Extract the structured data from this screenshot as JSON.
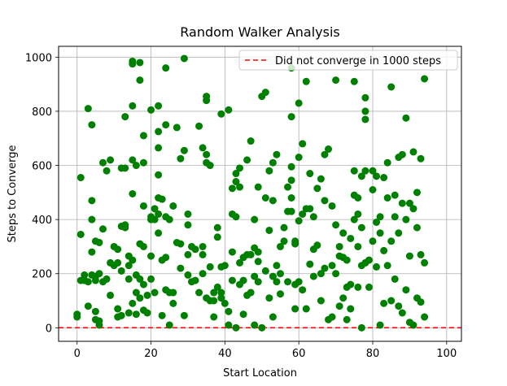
{
  "chart_data": {
    "type": "scatter",
    "title": "Random Walker Analysis",
    "xlabel": "Start Location",
    "ylabel": "Steps to Converge",
    "xlim": [
      -5,
      104
    ],
    "ylim": [
      -50,
      1040
    ],
    "xticks": [
      0,
      20,
      40,
      60,
      80,
      100
    ],
    "yticks": [
      0,
      200,
      400,
      600,
      800,
      1000
    ],
    "grid": true,
    "legend": {
      "position": "top-right",
      "entries": [
        "Did not converge in 1000 steps"
      ]
    },
    "reference_line": {
      "y": 0,
      "style": "dashed",
      "color": "#ff0000",
      "label": "Did not converge in 1000 steps"
    },
    "marker_color": "#008000",
    "series": [
      {
        "points": [
          [
            0,
            50
          ],
          [
            0,
            40
          ],
          [
            1,
            345
          ],
          [
            1,
            555
          ],
          [
            1,
            175
          ],
          [
            2,
            195
          ],
          [
            2,
            175
          ],
          [
            3,
            810
          ],
          [
            3,
            170
          ],
          [
            3,
            80
          ],
          [
            4,
            750
          ],
          [
            4,
            470
          ],
          [
            4,
            400
          ],
          [
            4,
            280
          ],
          [
            4,
            195
          ],
          [
            5,
            320
          ],
          [
            5,
            190
          ],
          [
            5,
            175
          ],
          [
            5,
            60
          ],
          [
            5,
            30
          ],
          [
            6,
            315
          ],
          [
            6,
            200
          ],
          [
            6,
            10
          ],
          [
            6,
            25
          ],
          [
            7,
            610
          ],
          [
            7,
            365
          ],
          [
            7,
            170
          ],
          [
            8,
            580
          ],
          [
            8,
            180
          ],
          [
            9,
            620
          ],
          [
            9,
            240
          ],
          [
            9,
            120
          ],
          [
            10,
            230
          ],
          [
            10,
            300
          ],
          [
            11,
            290
          ],
          [
            11,
            240
          ],
          [
            11,
            70
          ],
          [
            11,
            40
          ],
          [
            12,
            590
          ],
          [
            12,
            375
          ],
          [
            12,
            210
          ],
          [
            12,
            45
          ],
          [
            13,
            590
          ],
          [
            13,
            780
          ],
          [
            13,
            380
          ],
          [
            13,
            370
          ],
          [
            14,
            265
          ],
          [
            14,
            230
          ],
          [
            14,
            180
          ],
          [
            14,
            55
          ],
          [
            15,
            985
          ],
          [
            15,
            975
          ],
          [
            15,
            820
          ],
          [
            15,
            620
          ],
          [
            15,
            495
          ],
          [
            15,
            250
          ],
          [
            15,
            90
          ],
          [
            16,
            600
          ],
          [
            16,
            195
          ],
          [
            16,
            130
          ],
          [
            16,
            50
          ],
          [
            17,
            980
          ],
          [
            17,
            915
          ],
          [
            17,
            310
          ],
          [
            17,
            180
          ],
          [
            17,
            110
          ],
          [
            18,
            710
          ],
          [
            18,
            610
          ],
          [
            18,
            450
          ],
          [
            18,
            300
          ],
          [
            18,
            160
          ],
          [
            18,
            65
          ],
          [
            19,
            120
          ],
          [
            19,
            55
          ],
          [
            20,
            805
          ],
          [
            20,
            410
          ],
          [
            20,
            400
          ],
          [
            20,
            265
          ],
          [
            20,
            180
          ],
          [
            21,
            440
          ],
          [
            21,
            400
          ],
          [
            21,
            130
          ],
          [
            22,
            820
          ],
          [
            22,
            725
          ],
          [
            22,
            665
          ],
          [
            22,
            565
          ],
          [
            22,
            480
          ],
          [
            22,
            420
          ],
          [
            22,
            350
          ],
          [
            23,
            475
          ],
          [
            23,
            250
          ],
          [
            23,
            45
          ],
          [
            24,
            750
          ],
          [
            24,
            960
          ],
          [
            24,
            410
          ],
          [
            24,
            260
          ],
          [
            24,
            140
          ],
          [
            25,
            400
          ],
          [
            25,
            130
          ],
          [
            25,
            10
          ],
          [
            26,
            450
          ],
          [
            26,
            130
          ],
          [
            26,
            90
          ],
          [
            27,
            740
          ],
          [
            27,
            315
          ],
          [
            28,
            625
          ],
          [
            28,
            310
          ],
          [
            28,
            220
          ],
          [
            29,
            995
          ],
          [
            29,
            655
          ],
          [
            29,
            45
          ],
          [
            30,
            420
          ],
          [
            30,
            380
          ],
          [
            30,
            270
          ],
          [
            30,
            195
          ],
          [
            31,
            300
          ],
          [
            31,
            170
          ],
          [
            32,
            290
          ],
          [
            32,
            175
          ],
          [
            33,
            745
          ],
          [
            33,
            130
          ],
          [
            34,
            665
          ],
          [
            34,
            300
          ],
          [
            34,
            270
          ],
          [
            34,
            200
          ],
          [
            35,
            855
          ],
          [
            35,
            840
          ],
          [
            35,
            640
          ],
          [
            35,
            610
          ],
          [
            35,
            110
          ],
          [
            36,
            600
          ],
          [
            36,
            225
          ],
          [
            36,
            100
          ],
          [
            37,
            130
          ],
          [
            37,
            100
          ],
          [
            37,
            40
          ],
          [
            38,
            370
          ],
          [
            38,
            335
          ],
          [
            38,
            150
          ],
          [
            39,
            790
          ],
          [
            39,
            225
          ],
          [
            39,
            130
          ],
          [
            39,
            110
          ],
          [
            40,
            230
          ],
          [
            40,
            90
          ],
          [
            41,
            805
          ],
          [
            41,
            60
          ],
          [
            41,
            10
          ],
          [
            42,
            515
          ],
          [
            42,
            420
          ],
          [
            42,
            280
          ],
          [
            42,
            175
          ],
          [
            43,
            570
          ],
          [
            43,
            540
          ],
          [
            43,
            410
          ],
          [
            43,
            0
          ],
          [
            44,
            590
          ],
          [
            44,
            520
          ],
          [
            44,
            240
          ],
          [
            44,
            160
          ],
          [
            45,
            260
          ],
          [
            45,
            175
          ],
          [
            45,
            50
          ],
          [
            46,
            620
          ],
          [
            46,
            270
          ],
          [
            46,
            120
          ],
          [
            47,
            690
          ],
          [
            47,
            270
          ],
          [
            47,
            130
          ],
          [
            48,
            400
          ],
          [
            48,
            295
          ],
          [
            48,
            190
          ],
          [
            48,
            10
          ],
          [
            49,
            520
          ],
          [
            49,
            280
          ],
          [
            49,
            245
          ],
          [
            49,
            170
          ],
          [
            50,
            855
          ],
          [
            50,
            0
          ],
          [
            51,
            870
          ],
          [
            51,
            480
          ],
          [
            51,
            210
          ],
          [
            52,
            580
          ],
          [
            52,
            360
          ],
          [
            52,
            110
          ],
          [
            53,
            610
          ],
          [
            53,
            470
          ],
          [
            53,
            190
          ],
          [
            53,
            40
          ],
          [
            54,
            640
          ],
          [
            54,
            230
          ],
          [
            54,
            170
          ],
          [
            55,
            300
          ],
          [
            55,
            200
          ],
          [
            55,
            125
          ],
          [
            56,
            370
          ],
          [
            56,
            320
          ],
          [
            57,
            520
          ],
          [
            57,
            430
          ],
          [
            57,
            170
          ],
          [
            58,
            960
          ],
          [
            58,
            780
          ],
          [
            58,
            595
          ],
          [
            58,
            545
          ],
          [
            58,
            480
          ],
          [
            58,
            430
          ],
          [
            59,
            320
          ],
          [
            59,
            310
          ],
          [
            59,
            160
          ],
          [
            59,
            70
          ],
          [
            60,
            830
          ],
          [
            60,
            630
          ],
          [
            60,
            395
          ],
          [
            60,
            170
          ],
          [
            61,
            680
          ],
          [
            61,
            420
          ],
          [
            61,
            140
          ],
          [
            62,
            910
          ],
          [
            62,
            440
          ],
          [
            62,
            70
          ],
          [
            63,
            570
          ],
          [
            63,
            440
          ],
          [
            63,
            235
          ],
          [
            64,
            410
          ],
          [
            64,
            290
          ],
          [
            64,
            190
          ],
          [
            65,
            515
          ],
          [
            65,
            305
          ],
          [
            66,
            550
          ],
          [
            66,
            200
          ],
          [
            66,
            100
          ],
          [
            67,
            640
          ],
          [
            67,
            470
          ],
          [
            67,
            220
          ],
          [
            68,
            660
          ],
          [
            68,
            30
          ],
          [
            69,
            450
          ],
          [
            69,
            230
          ],
          [
            69,
            40
          ],
          [
            70,
            915
          ],
          [
            70,
            380
          ],
          [
            70,
            200
          ],
          [
            71,
            300
          ],
          [
            71,
            265
          ],
          [
            71,
            80
          ],
          [
            72,
            350
          ],
          [
            72,
            260
          ],
          [
            72,
            110
          ],
          [
            73,
            250
          ],
          [
            73,
            150
          ],
          [
            73,
            30
          ],
          [
            74,
            330
          ],
          [
            74,
            160
          ],
          [
            74,
            70
          ],
          [
            75,
            910
          ],
          [
            75,
            580
          ],
          [
            75,
            490
          ],
          [
            75,
            400
          ],
          [
            76,
            480
          ],
          [
            76,
            420
          ],
          [
            76,
            300
          ],
          [
            76,
            150
          ],
          [
            77,
            560
          ],
          [
            77,
            370
          ],
          [
            77,
            230
          ],
          [
            77,
            0
          ],
          [
            78,
            850
          ],
          [
            78,
            800
          ],
          [
            78,
            770
          ],
          [
            78,
            580
          ],
          [
            78,
            240
          ],
          [
            79,
            250
          ],
          [
            79,
            150
          ],
          [
            80,
            580
          ],
          [
            80,
            510
          ],
          [
            80,
            320
          ],
          [
            81,
            560
          ],
          [
            81,
            390
          ],
          [
            81,
            225
          ],
          [
            82,
            410
          ],
          [
            82,
            350
          ],
          [
            82,
            10
          ],
          [
            83,
            555
          ],
          [
            83,
            285
          ],
          [
            83,
            90
          ],
          [
            84,
            610
          ],
          [
            84,
            480
          ],
          [
            84,
            230
          ],
          [
            85,
            890
          ],
          [
            85,
            320
          ],
          [
            85,
            100
          ],
          [
            86,
            490
          ],
          [
            86,
            410
          ],
          [
            86,
            180
          ],
          [
            87,
            630
          ],
          [
            87,
            350
          ],
          [
            87,
            80
          ],
          [
            88,
            640
          ],
          [
            88,
            460
          ],
          [
            88,
            55
          ],
          [
            89,
            775
          ],
          [
            89,
            400
          ],
          [
            89,
            140
          ],
          [
            90,
            460
          ],
          [
            90,
            265
          ],
          [
            90,
            20
          ],
          [
            91,
            650
          ],
          [
            91,
            440
          ],
          [
            91,
            10
          ],
          [
            92,
            500
          ],
          [
            92,
            370
          ],
          [
            92,
            110
          ],
          [
            93,
            625
          ],
          [
            93,
            270
          ],
          [
            93,
            95
          ],
          [
            94,
            920
          ],
          [
            94,
            240
          ],
          [
            94,
            40
          ]
        ]
      }
    ]
  }
}
